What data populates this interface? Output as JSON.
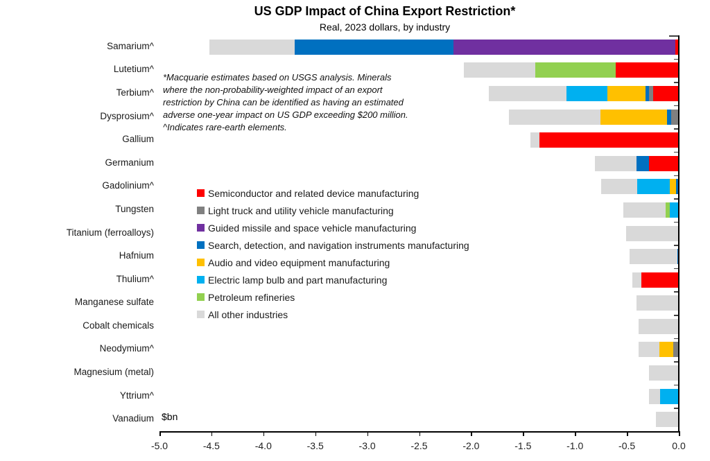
{
  "header": {
    "title": "US GDP Impact of China Export Restriction*",
    "subtitle": "Real, 2023 dollars, by industry"
  },
  "annotation": {
    "text": "*Macquarie estimates based on USGS analysis. Minerals\nwhere the non-probability-weighted impact of an export\nrestriction by China can be identified as having an estimated\nadverse one-year impact on US GDP exceeding $200 million.\n^Indicates rare-earth elements."
  },
  "axis": {
    "unit_label": "$bn",
    "tick_labels": [
      "-5.0",
      "-4.5",
      "-4.0",
      "-3.5",
      "-3.0",
      "-2.5",
      "-2.0",
      "-1.5",
      "-1.0",
      "-0.5",
      "0.0"
    ]
  },
  "chart_data": {
    "type": "bar",
    "orientation": "horizontal-stacked",
    "title": "US GDP Impact of China Export Restriction*",
    "subtitle": "Real, 2023 dollars, by industry",
    "xlabel": "$bn",
    "xlim": [
      -5.0,
      0.0
    ],
    "x_tick_step": 0.5,
    "grid": false,
    "legend_position": "center-left",
    "series": [
      {
        "key": "semiconductor",
        "name": "Semiconductor and related device manufacturing",
        "color": "#FE0000"
      },
      {
        "key": "light_truck",
        "name": "Light truck and utility vehicle manufacturing",
        "color": "#808080"
      },
      {
        "key": "guided_missile",
        "name": "Guided missile and space vehicle manufacturing",
        "color": "#7030A0"
      },
      {
        "key": "search_detection",
        "name": "Search, detection, and navigation instruments manufacturing",
        "color": "#0070C0"
      },
      {
        "key": "audio_video",
        "name": "Audio and video equipment manufacturing",
        "color": "#FFC000"
      },
      {
        "key": "electric_lamp",
        "name": "Electric lamp bulb and part manufacturing",
        "color": "#00B0F0"
      },
      {
        "key": "petroleum",
        "name": "Petroleum refineries",
        "color": "#92D050"
      },
      {
        "key": "all_other",
        "name": "All other industries",
        "color": "#D9D9D9"
      }
    ],
    "bars": [
      {
        "label": "Samarium^",
        "total": -4.52,
        "segments": [
          [
            "all_other",
            0.82
          ],
          [
            "search_detection",
            1.53
          ],
          [
            "guided_missile",
            2.14
          ],
          [
            "semiconductor",
            0.03
          ]
        ]
      },
      {
        "label": "Lutetium^",
        "total": -2.07,
        "segments": [
          [
            "all_other",
            0.69
          ],
          [
            "petroleum",
            0.77
          ],
          [
            "semiconductor",
            0.61
          ]
        ]
      },
      {
        "label": "Terbium^",
        "total": -1.83,
        "segments": [
          [
            "all_other",
            0.75
          ],
          [
            "electric_lamp",
            0.39
          ],
          [
            "audio_video",
            0.37
          ],
          [
            "search_detection",
            0.03
          ],
          [
            "light_truck",
            0.04
          ],
          [
            "semiconductor",
            0.25
          ]
        ]
      },
      {
        "label": "Dysprosium^",
        "total": -1.635,
        "segments": [
          [
            "all_other",
            0.88
          ],
          [
            "audio_video",
            0.64
          ],
          [
            "search_detection",
            0.045
          ],
          [
            "light_truck",
            0.07
          ]
        ]
      },
      {
        "label": "Gallium",
        "total": -1.43,
        "segments": [
          [
            "all_other",
            0.09
          ],
          [
            "semiconductor",
            1.34
          ]
        ]
      },
      {
        "label": "Germanium",
        "total": -0.81,
        "segments": [
          [
            "all_other",
            0.4
          ],
          [
            "search_detection",
            0.12
          ],
          [
            "semiconductor",
            0.29
          ]
        ]
      },
      {
        "label": "Gadolinium^",
        "total": -0.75,
        "segments": [
          [
            "all_other",
            0.35
          ],
          [
            "electric_lamp",
            0.31
          ],
          [
            "audio_video",
            0.065
          ],
          [
            "search_detection",
            0.025
          ]
        ]
      },
      {
        "label": "Tungsten",
        "total": -0.535,
        "segments": [
          [
            "all_other",
            0.41
          ],
          [
            "petroleum",
            0.04
          ],
          [
            "electric_lamp",
            0.085
          ]
        ]
      },
      {
        "label": "Titanium (ferroalloys)",
        "total": -0.51,
        "segments": [
          [
            "all_other",
            0.51
          ]
        ]
      },
      {
        "label": "Hafnium",
        "total": -0.475,
        "segments": [
          [
            "all_other",
            0.46
          ],
          [
            "search_detection",
            0.015
          ]
        ]
      },
      {
        "label": "Thulium^",
        "total": -0.45,
        "segments": [
          [
            "all_other",
            0.09
          ],
          [
            "semiconductor",
            0.36
          ]
        ]
      },
      {
        "label": "Manganese sulfate",
        "total": -0.41,
        "segments": [
          [
            "all_other",
            0.41
          ]
        ]
      },
      {
        "label": "Cobalt chemicals",
        "total": -0.39,
        "segments": [
          [
            "all_other",
            0.39
          ]
        ]
      },
      {
        "label": "Neodymium^",
        "total": -0.39,
        "segments": [
          [
            "all_other",
            0.2
          ],
          [
            "audio_video",
            0.135
          ],
          [
            "light_truck",
            0.055
          ]
        ]
      },
      {
        "label": "Magnesium (metal)",
        "total": -0.29,
        "segments": [
          [
            "all_other",
            0.29
          ]
        ]
      },
      {
        "label": "Yttrium^",
        "total": -0.285,
        "segments": [
          [
            "all_other",
            0.105
          ],
          [
            "electric_lamp",
            0.18
          ]
        ]
      },
      {
        "label": "Vanadium",
        "total": -0.22,
        "segments": [
          [
            "all_other",
            0.22
          ]
        ]
      }
    ]
  }
}
